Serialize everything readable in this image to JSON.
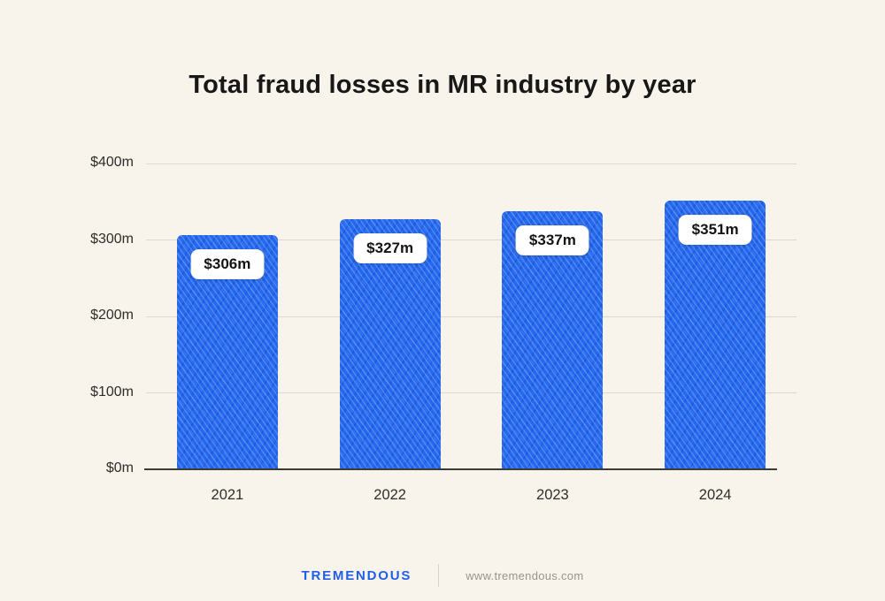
{
  "title": "Total fraud losses in MR industry by year",
  "chart_data": {
    "type": "bar",
    "title": "Total fraud losses in MR industry by year",
    "categories": [
      "2021",
      "2022",
      "2023",
      "2024"
    ],
    "values": [
      306,
      327,
      337,
      351
    ],
    "value_labels": [
      "$306m",
      "$327m",
      "$337m",
      "$351m"
    ],
    "xlabel": "",
    "ylabel": "",
    "ylim": [
      0,
      400
    ],
    "yticks": [
      0,
      100,
      200,
      300,
      400
    ],
    "ytick_labels": [
      "$0m",
      "$100m",
      "$200m",
      "$300m",
      "$400m"
    ],
    "grid": true,
    "legend": "none",
    "bar_color": "#2468ef"
  },
  "footer": {
    "brand": "TREMENDOUS",
    "url": "www.tremendous.com"
  },
  "colors": {
    "background": "#f8f3eb",
    "bar": "#2468ef",
    "grid": "#ddd8cf",
    "axis": "#3b3b38",
    "title_text": "#181818",
    "brand_blue": "#1f5fe8",
    "url_gray": "#98948c"
  }
}
